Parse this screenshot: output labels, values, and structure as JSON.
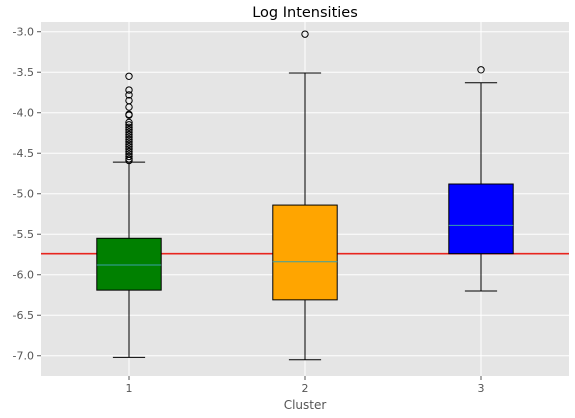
{
  "chart_data": {
    "type": "box",
    "title": "Log Intensities",
    "xlabel": "Cluster",
    "ylabel": "",
    "ylim": [
      -7.25,
      -2.88
    ],
    "xlim": [
      0.5,
      3.5
    ],
    "yticks": [
      -3.0,
      -3.5,
      -4.0,
      -4.5,
      -5.0,
      -5.5,
      -6.0,
      -6.5,
      -7.0
    ],
    "ytick_labels": [
      "-3.0",
      "-3.5",
      "-4.0",
      "-4.5",
      "-5.0",
      "-5.5",
      "-6.0",
      "-6.5",
      "-7.0"
    ],
    "categories": [
      "1",
      "2",
      "3"
    ],
    "grid": true,
    "reference_line": {
      "y": -5.74,
      "color": "#e8251e"
    },
    "boxes": [
      {
        "category": "1",
        "color": "#008000",
        "whisker_low": -7.02,
        "q1": -6.19,
        "median": -5.88,
        "q3": -5.55,
        "whisker_high": -4.61,
        "outliers": [
          -3.55,
          -3.72,
          -3.78,
          -3.85,
          -3.93,
          -4.02,
          -4.03,
          -4.12,
          -4.15,
          -4.18,
          -4.21,
          -4.24,
          -4.27,
          -4.3,
          -4.33,
          -4.36,
          -4.39,
          -4.42,
          -4.45,
          -4.48,
          -4.51,
          -4.54,
          -4.57,
          -4.59
        ]
      },
      {
        "category": "2",
        "color": "#ffa500",
        "whisker_low": -7.05,
        "q1": -6.31,
        "median": -5.84,
        "q3": -5.14,
        "whisker_high": -3.51,
        "outliers": [
          -3.03
        ]
      },
      {
        "category": "3",
        "color": "#0000ff",
        "whisker_low": -6.2,
        "q1": -5.74,
        "median": -5.39,
        "q3": -4.88,
        "whisker_high": -3.63,
        "outliers": [
          -3.47
        ]
      }
    ]
  }
}
